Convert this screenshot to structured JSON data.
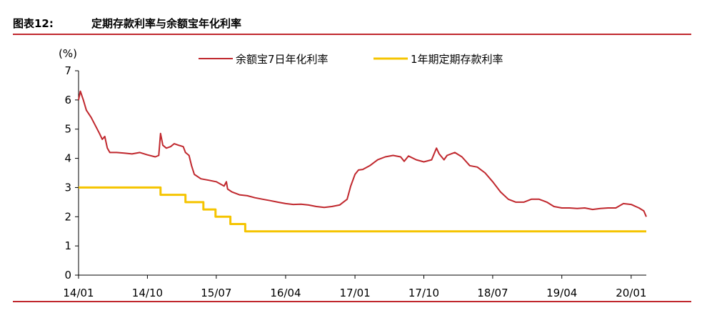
{
  "header": {
    "figure_label": "图表12:",
    "title": "定期存款利率与余额宝年化利率"
  },
  "chart_data": {
    "type": "line",
    "ylabel": "(%)",
    "ylim": [
      0,
      7
    ],
    "yticks": [
      "0",
      "1",
      "2",
      "3",
      "4",
      "5",
      "6",
      "7"
    ],
    "xlim": [
      "2014-01",
      "2020-03"
    ],
    "xticks": [
      {
        "date": "2014-01",
        "label": "14/01"
      },
      {
        "date": "2014-10",
        "label": "14/10"
      },
      {
        "date": "2015-07",
        "label": "15/07"
      },
      {
        "date": "2016-04",
        "label": "16/04"
      },
      {
        "date": "2017-01",
        "label": "17/01"
      },
      {
        "date": "2017-10",
        "label": "17/10"
      },
      {
        "date": "2018-07",
        "label": "18/07"
      },
      {
        "date": "2019-04",
        "label": "19/04"
      },
      {
        "date": "2020-01",
        "label": "20/01"
      }
    ],
    "grid": false,
    "legend_position": "top-center",
    "series": [
      {
        "name": "余额宝7日年化利率",
        "color": "#c0272d",
        "points": [
          [
            "2014-01-01",
            6.0
          ],
          [
            "2014-01-08",
            6.3
          ],
          [
            "2014-01-20",
            6.0
          ],
          [
            "2014-02-01",
            5.65
          ],
          [
            "2014-02-20",
            5.4
          ],
          [
            "2014-03-10",
            5.1
          ],
          [
            "2014-03-25",
            4.85
          ],
          [
            "2014-04-05",
            4.65
          ],
          [
            "2014-04-15",
            4.75
          ],
          [
            "2014-04-25",
            4.35
          ],
          [
            "2014-05-05",
            4.2
          ],
          [
            "2014-06-01",
            4.2
          ],
          [
            "2014-07-01",
            4.18
          ],
          [
            "2014-08-01",
            4.15
          ],
          [
            "2014-09-01",
            4.2
          ],
          [
            "2014-10-01",
            4.12
          ],
          [
            "2014-11-01",
            4.05
          ],
          [
            "2014-11-15",
            4.1
          ],
          [
            "2014-11-22",
            4.85
          ],
          [
            "2014-12-01",
            4.45
          ],
          [
            "2014-12-15",
            4.35
          ],
          [
            "2015-01-01",
            4.4
          ],
          [
            "2015-01-15",
            4.5
          ],
          [
            "2015-02-01",
            4.45
          ],
          [
            "2015-02-20",
            4.4
          ],
          [
            "2015-03-01",
            4.2
          ],
          [
            "2015-03-15",
            4.1
          ],
          [
            "2015-03-25",
            3.75
          ],
          [
            "2015-04-05",
            3.45
          ],
          [
            "2015-05-01",
            3.3
          ],
          [
            "2015-06-01",
            3.25
          ],
          [
            "2015-07-01",
            3.2
          ],
          [
            "2015-08-01",
            3.05
          ],
          [
            "2015-08-10",
            3.2
          ],
          [
            "2015-08-15",
            2.95
          ],
          [
            "2015-09-01",
            2.85
          ],
          [
            "2015-10-01",
            2.75
          ],
          [
            "2015-11-01",
            2.72
          ],
          [
            "2015-12-01",
            2.65
          ],
          [
            "2016-01-01",
            2.6
          ],
          [
            "2016-02-01",
            2.55
          ],
          [
            "2016-03-01",
            2.5
          ],
          [
            "2016-04-01",
            2.45
          ],
          [
            "2016-05-01",
            2.42
          ],
          [
            "2016-06-01",
            2.43
          ],
          [
            "2016-07-01",
            2.4
          ],
          [
            "2016-08-01",
            2.35
          ],
          [
            "2016-09-01",
            2.32
          ],
          [
            "2016-10-01",
            2.35
          ],
          [
            "2016-11-01",
            2.4
          ],
          [
            "2016-12-01",
            2.6
          ],
          [
            "2016-12-15",
            3.05
          ],
          [
            "2017-01-01",
            3.45
          ],
          [
            "2017-01-15",
            3.6
          ],
          [
            "2017-02-01",
            3.62
          ],
          [
            "2017-03-01",
            3.75
          ],
          [
            "2017-04-01",
            3.95
          ],
          [
            "2017-05-01",
            4.05
          ],
          [
            "2017-06-01",
            4.1
          ],
          [
            "2017-07-01",
            4.05
          ],
          [
            "2017-07-15",
            3.9
          ],
          [
            "2017-08-01",
            4.08
          ],
          [
            "2017-09-01",
            3.95
          ],
          [
            "2017-10-01",
            3.88
          ],
          [
            "2017-11-01",
            3.95
          ],
          [
            "2017-11-20",
            4.35
          ],
          [
            "2017-12-01",
            4.15
          ],
          [
            "2017-12-20",
            3.95
          ],
          [
            "2018-01-01",
            4.1
          ],
          [
            "2018-02-01",
            4.2
          ],
          [
            "2018-03-01",
            4.05
          ],
          [
            "2018-04-01",
            3.75
          ],
          [
            "2018-05-01",
            3.7
          ],
          [
            "2018-06-01",
            3.5
          ],
          [
            "2018-07-01",
            3.2
          ],
          [
            "2018-08-01",
            2.85
          ],
          [
            "2018-09-01",
            2.6
          ],
          [
            "2018-10-01",
            2.5
          ],
          [
            "2018-11-01",
            2.5
          ],
          [
            "2018-12-01",
            2.6
          ],
          [
            "2019-01-01",
            2.6
          ],
          [
            "2019-02-01",
            2.5
          ],
          [
            "2019-03-01",
            2.35
          ],
          [
            "2019-04-01",
            2.3
          ],
          [
            "2019-05-01",
            2.3
          ],
          [
            "2019-06-01",
            2.28
          ],
          [
            "2019-07-01",
            2.3
          ],
          [
            "2019-08-01",
            2.25
          ],
          [
            "2019-09-01",
            2.28
          ],
          [
            "2019-10-01",
            2.3
          ],
          [
            "2019-11-01",
            2.3
          ],
          [
            "2019-12-01",
            2.45
          ],
          [
            "2020-01-01",
            2.42
          ],
          [
            "2020-02-01",
            2.3
          ],
          [
            "2020-02-20",
            2.2
          ],
          [
            "2020-03-01",
            2.0
          ]
        ]
      },
      {
        "name": "1年期定期存款利率",
        "color": "#f5c400",
        "points": [
          [
            "2014-01-01",
            3.0
          ],
          [
            "2014-11-22",
            3.0
          ],
          [
            "2014-11-22",
            2.75
          ],
          [
            "2015-03-01",
            2.75
          ],
          [
            "2015-03-01",
            2.5
          ],
          [
            "2015-05-11",
            2.5
          ],
          [
            "2015-05-11",
            2.25
          ],
          [
            "2015-06-28",
            2.25
          ],
          [
            "2015-06-28",
            2.0
          ],
          [
            "2015-08-26",
            2.0
          ],
          [
            "2015-08-26",
            1.75
          ],
          [
            "2015-10-24",
            1.75
          ],
          [
            "2015-10-24",
            1.5
          ],
          [
            "2020-03-01",
            1.5
          ]
        ]
      }
    ]
  }
}
